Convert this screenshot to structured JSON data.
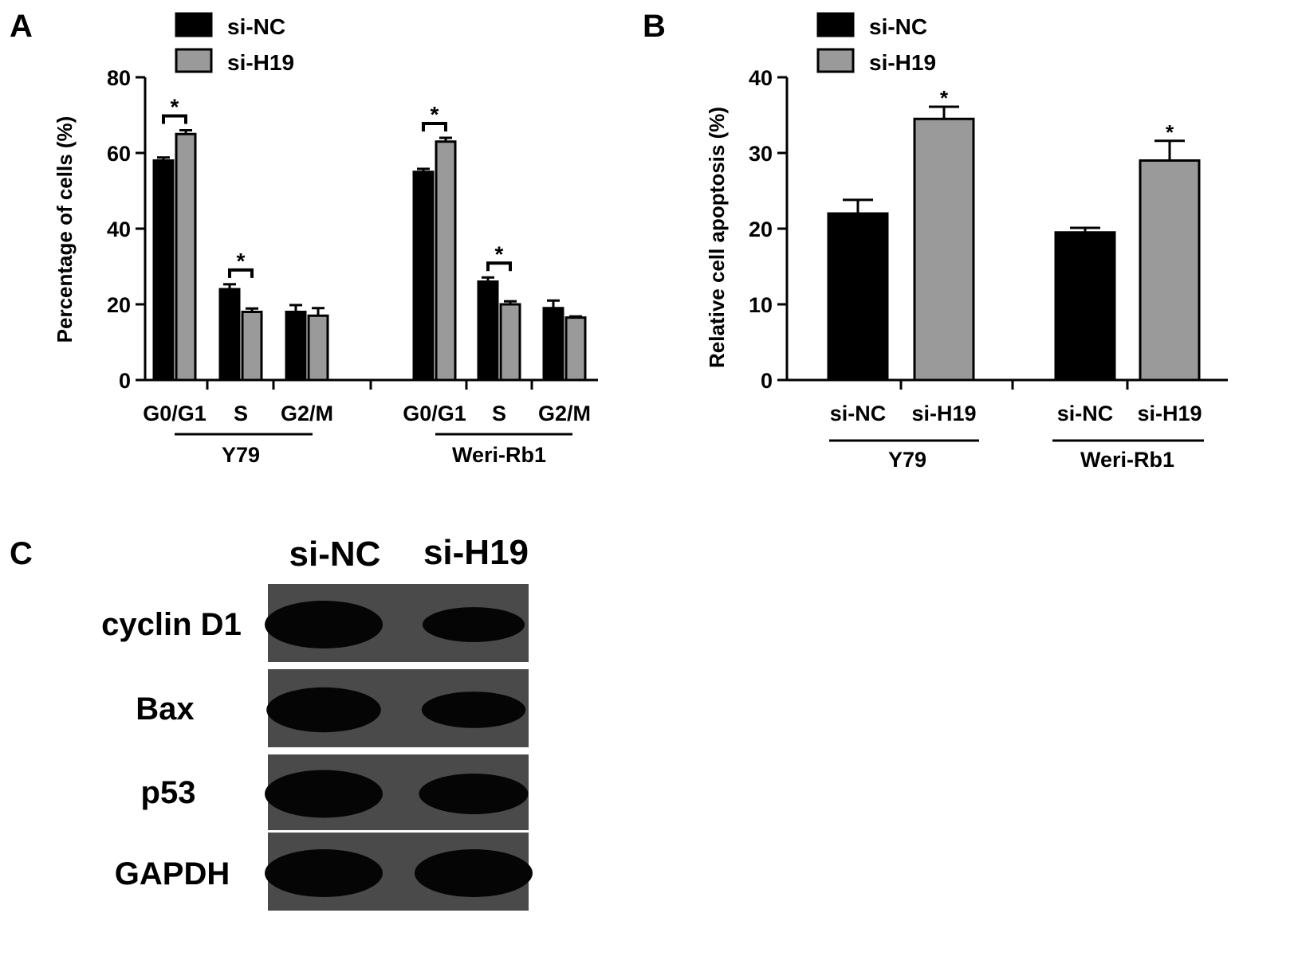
{
  "panels": {
    "a": {
      "letter": "A"
    },
    "b": {
      "letter": "B"
    },
    "c": {
      "letter": "C"
    }
  },
  "legend": {
    "entries": [
      {
        "name": "si-NC",
        "color": "#000000"
      },
      {
        "name": "si-H19",
        "color": "#9a9a9a"
      }
    ]
  },
  "chart_data": [
    {
      "panel": "A",
      "type": "bar",
      "ylabel": "Percentage of cells (%)",
      "ylim": [
        0,
        80
      ],
      "yticks": [
        0,
        20,
        40,
        60,
        80
      ],
      "groups": [
        {
          "name": "Y79",
          "categories": [
            "G0/G1",
            "S",
            "G2/M"
          ]
        },
        {
          "name": "Weri-Rb1",
          "categories": [
            "G0/G1",
            "S",
            "G2/M"
          ]
        }
      ],
      "series": [
        {
          "name": "si-NC",
          "color": "#000000",
          "values": [
            58.0,
            24.0,
            18.0,
            55.0,
            26.0,
            19.0
          ],
          "errors": [
            0.8,
            1.3,
            1.8,
            0.8,
            1.1,
            2.0
          ]
        },
        {
          "name": "si-H19",
          "color": "#9a9a9a",
          "values": [
            65.0,
            18.0,
            17.0,
            63.0,
            20.0,
            16.5
          ],
          "errors": [
            1.0,
            0.9,
            2.0,
            1.0,
            0.8,
            0.3
          ]
        }
      ],
      "significance": [
        {
          "group": 0,
          "category": 0,
          "label": "*"
        },
        {
          "group": 0,
          "category": 1,
          "label": "*"
        },
        {
          "group": 1,
          "category": 0,
          "label": "*"
        },
        {
          "group": 1,
          "category": 1,
          "label": "*"
        }
      ],
      "legend_position": "top-left"
    },
    {
      "panel": "B",
      "type": "bar",
      "ylabel": "Relative cell apoptosis (%)",
      "ylim": [
        0,
        40
      ],
      "yticks": [
        0,
        10,
        20,
        30,
        40
      ],
      "groups": [
        {
          "name": "Y79",
          "categories": [
            "si-NC",
            "si-H19"
          ]
        },
        {
          "name": "Weri-Rb1",
          "categories": [
            "si-NC",
            "si-H19"
          ]
        }
      ],
      "bars": [
        {
          "group": 0,
          "label": "si-NC",
          "value": 22.0,
          "error": 1.8,
          "color": "#000000"
        },
        {
          "group": 0,
          "label": "si-H19",
          "value": 34.5,
          "error": 1.6,
          "color": "#9a9a9a"
        },
        {
          "group": 1,
          "label": "si-NC",
          "value": 19.5,
          "error": 0.6,
          "color": "#000000"
        },
        {
          "group": 1,
          "label": "si-H19",
          "value": 29.0,
          "error": 2.6,
          "color": "#9a9a9a"
        }
      ],
      "significance": [
        {
          "bar": 1,
          "label": "*"
        },
        {
          "bar": 3,
          "label": "*"
        }
      ],
      "legend_position": "top-left"
    }
  ],
  "blot": {
    "lanes": [
      "si-NC",
      "si-H19"
    ],
    "rows": [
      {
        "name": "cyclin D1",
        "bands": [
          1.0,
          0.55
        ]
      },
      {
        "name": "Bax",
        "bands": [
          0.9,
          0.6
        ]
      },
      {
        "name": "p53",
        "bands": [
          1.0,
          0.75
        ]
      },
      {
        "name": "GAPDH",
        "bands": [
          1.0,
          1.0
        ]
      }
    ]
  }
}
